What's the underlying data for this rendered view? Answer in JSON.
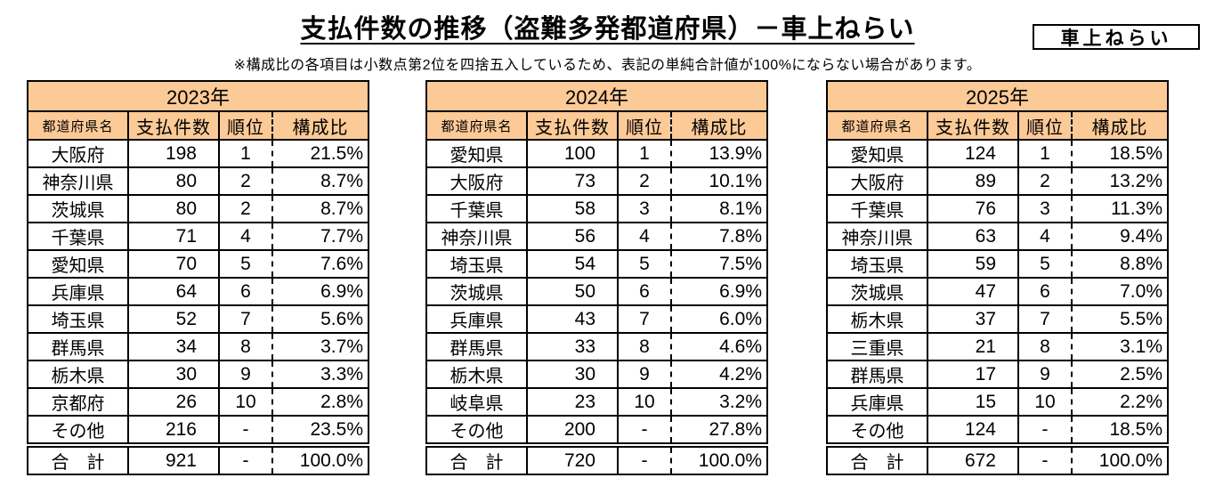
{
  "page": {
    "title": "支払件数の推移（盗難多発都道府県）－車上ねらい",
    "note": "※構成比の各項目は小数点第2位を四捨五入しているため、表記の単純合計値が100%にならない場合があります。",
    "corner_label": "車上ねらい"
  },
  "colors": {
    "header_bg": "#FCCA97",
    "border": "#000000"
  },
  "columns": {
    "prefecture": "都道府県名",
    "count": "支払件数",
    "rank": "順位",
    "ratio": "構成比"
  },
  "tables": [
    {
      "year": "2023年",
      "rows": [
        {
          "prefecture": "大阪府",
          "count": "198",
          "rank": "1",
          "ratio": "21.5%"
        },
        {
          "prefecture": "神奈川県",
          "count": "80",
          "rank": "2",
          "ratio": "8.7%"
        },
        {
          "prefecture": "茨城県",
          "count": "80",
          "rank": "2",
          "ratio": "8.7%"
        },
        {
          "prefecture": "千葉県",
          "count": "71",
          "rank": "4",
          "ratio": "7.7%"
        },
        {
          "prefecture": "愛知県",
          "count": "70",
          "rank": "5",
          "ratio": "7.6%"
        },
        {
          "prefecture": "兵庫県",
          "count": "64",
          "rank": "6",
          "ratio": "6.9%"
        },
        {
          "prefecture": "埼玉県",
          "count": "52",
          "rank": "7",
          "ratio": "5.6%"
        },
        {
          "prefecture": "群馬県",
          "count": "34",
          "rank": "8",
          "ratio": "3.7%"
        },
        {
          "prefecture": "栃木県",
          "count": "30",
          "rank": "9",
          "ratio": "3.3%"
        },
        {
          "prefecture": "京都府",
          "count": "26",
          "rank": "10",
          "ratio": "2.8%"
        },
        {
          "prefecture": "その他",
          "count": "216",
          "rank": "-",
          "ratio": "23.5%"
        },
        {
          "prefecture": "合　計",
          "count": "921",
          "rank": "-",
          "ratio": "100.0%"
        }
      ]
    },
    {
      "year": "2024年",
      "rows": [
        {
          "prefecture": "愛知県",
          "count": "100",
          "rank": "1",
          "ratio": "13.9%"
        },
        {
          "prefecture": "大阪府",
          "count": "73",
          "rank": "2",
          "ratio": "10.1%"
        },
        {
          "prefecture": "千葉県",
          "count": "58",
          "rank": "3",
          "ratio": "8.1%"
        },
        {
          "prefecture": "神奈川県",
          "count": "56",
          "rank": "4",
          "ratio": "7.8%"
        },
        {
          "prefecture": "埼玉県",
          "count": "54",
          "rank": "5",
          "ratio": "7.5%"
        },
        {
          "prefecture": "茨城県",
          "count": "50",
          "rank": "6",
          "ratio": "6.9%"
        },
        {
          "prefecture": "兵庫県",
          "count": "43",
          "rank": "7",
          "ratio": "6.0%"
        },
        {
          "prefecture": "群馬県",
          "count": "33",
          "rank": "8",
          "ratio": "4.6%"
        },
        {
          "prefecture": "栃木県",
          "count": "30",
          "rank": "9",
          "ratio": "4.2%"
        },
        {
          "prefecture": "岐阜県",
          "count": "23",
          "rank": "10",
          "ratio": "3.2%"
        },
        {
          "prefecture": "その他",
          "count": "200",
          "rank": "-",
          "ratio": "27.8%"
        },
        {
          "prefecture": "合　計",
          "count": "720",
          "rank": "-",
          "ratio": "100.0%"
        }
      ]
    },
    {
      "year": "2025年",
      "rows": [
        {
          "prefecture": "愛知県",
          "count": "124",
          "rank": "1",
          "ratio": "18.5%"
        },
        {
          "prefecture": "大阪府",
          "count": "89",
          "rank": "2",
          "ratio": "13.2%"
        },
        {
          "prefecture": "千葉県",
          "count": "76",
          "rank": "3",
          "ratio": "11.3%"
        },
        {
          "prefecture": "神奈川県",
          "count": "63",
          "rank": "4",
          "ratio": "9.4%"
        },
        {
          "prefecture": "埼玉県",
          "count": "59",
          "rank": "5",
          "ratio": "8.8%"
        },
        {
          "prefecture": "茨城県",
          "count": "47",
          "rank": "6",
          "ratio": "7.0%"
        },
        {
          "prefecture": "栃木県",
          "count": "37",
          "rank": "7",
          "ratio": "5.5%"
        },
        {
          "prefecture": "三重県",
          "count": "21",
          "rank": "8",
          "ratio": "3.1%"
        },
        {
          "prefecture": "群馬県",
          "count": "17",
          "rank": "9",
          "ratio": "2.5%"
        },
        {
          "prefecture": "兵庫県",
          "count": "15",
          "rank": "10",
          "ratio": "2.2%"
        },
        {
          "prefecture": "その他",
          "count": "124",
          "rank": "-",
          "ratio": "18.5%"
        },
        {
          "prefecture": "合　計",
          "count": "672",
          "rank": "-",
          "ratio": "100.0%"
        }
      ]
    }
  ]
}
